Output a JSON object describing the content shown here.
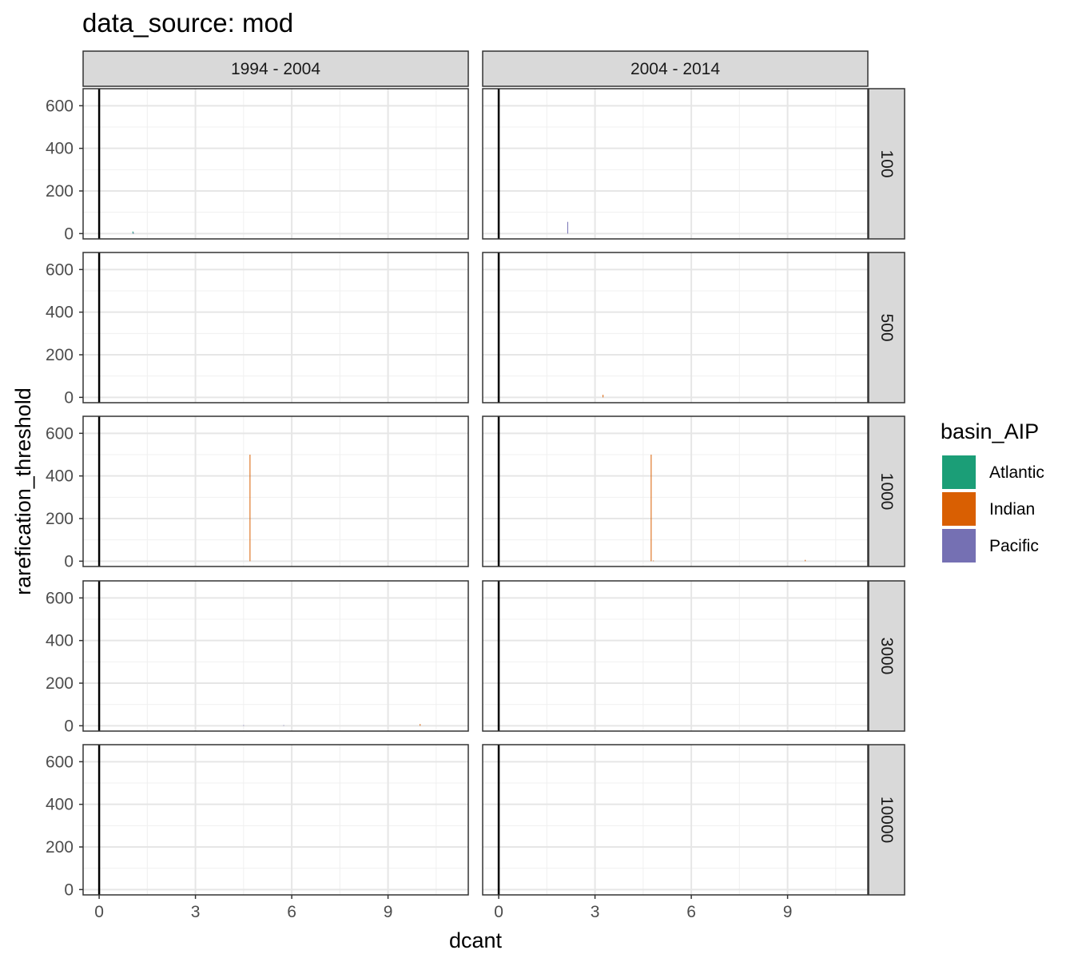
{
  "chart_data": {
    "type": "bar",
    "title": "data_source: mod",
    "xlabel": "dcant",
    "ylabel": "rarefication_threshold",
    "xlim": [
      -0.5,
      11.5
    ],
    "ylim": [
      -25,
      680
    ],
    "x_ticks": [
      0,
      3,
      6,
      9
    ],
    "x_tick_labels": [
      "0",
      "3",
      "6",
      "9"
    ],
    "y_ticks": [
      0,
      200,
      400,
      600
    ],
    "y_tick_labels": [
      "0",
      "200",
      "400",
      "600"
    ],
    "x_minor_ticks": [
      1.5,
      4.5,
      7.5,
      10.5
    ],
    "y_minor_ticks": [
      100,
      300,
      500
    ],
    "vline_x": 0,
    "grid": true,
    "facet_cols": [
      "1994 - 2004",
      "2004 - 2014"
    ],
    "facet_rows": [
      "100",
      "500",
      "1000",
      "3000",
      "10000"
    ],
    "legend": {
      "title": "basin_AIP",
      "position": "right",
      "entries": [
        {
          "label": "Atlantic",
          "color": "#1b9e77"
        },
        {
          "label": "Indian",
          "color": "#d95f02"
        },
        {
          "label": "Pacific",
          "color": "#7570b3"
        }
      ]
    },
    "bar_width": 0.02,
    "bars": [
      {
        "row": 0,
        "col": 0,
        "basin": "Atlantic",
        "x": 1.05,
        "y": 10
      },
      {
        "row": 0,
        "col": 0,
        "basin": "Pacific",
        "x": 1.07,
        "y": 5
      },
      {
        "row": 0,
        "col": 1,
        "basin": "Pacific",
        "x": 2.15,
        "y": 55
      },
      {
        "row": 1,
        "col": 1,
        "basin": "Indian",
        "x": 3.25,
        "y": 12
      },
      {
        "row": 2,
        "col": 0,
        "basin": "Indian",
        "x": 4.7,
        "y": 500
      },
      {
        "row": 2,
        "col": 1,
        "basin": "Indian",
        "x": 4.75,
        "y": 500
      },
      {
        "row": 2,
        "col": 1,
        "basin": "Indian",
        "x": 4.82,
        "y": 3
      },
      {
        "row": 2,
        "col": 1,
        "basin": "Indian",
        "x": 9.55,
        "y": 6
      },
      {
        "row": 3,
        "col": 0,
        "basin": "Pacific",
        "x": 4.5,
        "y": 3
      },
      {
        "row": 3,
        "col": 0,
        "basin": "Pacific",
        "x": 5.75,
        "y": 3
      },
      {
        "row": 3,
        "col": 0,
        "basin": "Indian",
        "x": 10.0,
        "y": 8
      }
    ]
  }
}
